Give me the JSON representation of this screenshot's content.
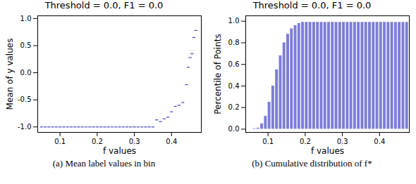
{
  "chart_data": [
    {
      "type": "scatter",
      "title": "Threshold = 0.0, F1 = 0.0",
      "caption": "(a) Mean label values in bin",
      "x_label": "f values",
      "y_label": "Mean of y values",
      "color": "#4040c0",
      "marker": "dash",
      "x": [
        0.05,
        0.06,
        0.07,
        0.08,
        0.09,
        0.1,
        0.11,
        0.12,
        0.13,
        0.14,
        0.15,
        0.16,
        0.17,
        0.18,
        0.19,
        0.2,
        0.21,
        0.22,
        0.23,
        0.24,
        0.25,
        0.26,
        0.27,
        0.28,
        0.29,
        0.3,
        0.31,
        0.32,
        0.33,
        0.34,
        0.35,
        0.36,
        0.37,
        0.38,
        0.39,
        0.4,
        0.41,
        0.42,
        0.43,
        0.44,
        0.445,
        0.45,
        0.455,
        0.46,
        0.465
      ],
      "values": [
        -1,
        -1,
        -1,
        -1,
        -1,
        -1,
        -1,
        -1,
        -1,
        -1,
        -1,
        -1,
        -1,
        -1,
        -1,
        -1,
        -1,
        -1,
        -1,
        -1,
        -1,
        -1,
        -1,
        -1,
        -1,
        -1,
        -1,
        -1,
        -1,
        -1,
        -1,
        -0.87,
        -0.9,
        -0.85,
        -0.82,
        -0.72,
        -0.62,
        -0.6,
        -0.55,
        -0.22,
        0.1,
        0.28,
        0.35,
        0.65,
        0.78
      ],
      "xlim": [
        0.04,
        0.48
      ],
      "xticks": [
        0.1,
        0.2,
        0.3,
        0.4
      ],
      "ylim": [
        -1.1,
        1.05
      ],
      "yticks": [
        {
          "value": -1,
          "label": "-1.0"
        },
        -0.5,
        {
          "value": 0,
          "label": "0.0"
        },
        0.5,
        {
          "value": 1,
          "label": "1.0"
        }
      ]
    },
    {
      "type": "bar",
      "title": "Threshold = 0.0, F1 = 0.0",
      "caption": "(b) Cumulative distribution of f*",
      "x_label": "f values",
      "y_label": "Percentile of Points",
      "color": "#7d7dd8",
      "x": [
        0.05,
        0.06,
        0.07,
        0.08,
        0.09,
        0.1,
        0.11,
        0.12,
        0.13,
        0.14,
        0.15,
        0.16,
        0.17,
        0.18,
        0.19,
        0.2,
        0.21,
        0.22,
        0.23,
        0.24,
        0.25,
        0.26,
        0.27,
        0.28,
        0.29,
        0.3,
        0.31,
        0.32,
        0.33,
        0.34,
        0.35,
        0.36,
        0.37,
        0.38,
        0.39,
        0.4,
        0.41,
        0.42,
        0.43,
        0.44,
        0.45,
        0.46,
        0.47
      ],
      "values": [
        0,
        0.005,
        0.01,
        0.05,
        0.12,
        0.25,
        0.4,
        0.55,
        0.68,
        0.8,
        0.88,
        0.93,
        0.96,
        0.98,
        0.99,
        0.99,
        0.99,
        0.99,
        0.99,
        0.99,
        0.99,
        0.99,
        0.99,
        0.99,
        0.99,
        0.99,
        0.99,
        0.99,
        0.99,
        0.99,
        0.99,
        0.99,
        0.99,
        0.99,
        0.99,
        0.99,
        0.99,
        0.99,
        0.99,
        0.99,
        0.99,
        0.99,
        0.99
      ],
      "xlim": [
        0.04,
        0.48
      ],
      "xticks": [
        0.1,
        0.2,
        0.3,
        0.4
      ],
      "ylim": [
        -0.03,
        1.05
      ],
      "yticks": [
        {
          "value": 0,
          "label": "0.0"
        },
        0.2,
        0.4,
        0.6,
        0.8,
        {
          "value": 1,
          "label": "1.0"
        }
      ]
    }
  ]
}
